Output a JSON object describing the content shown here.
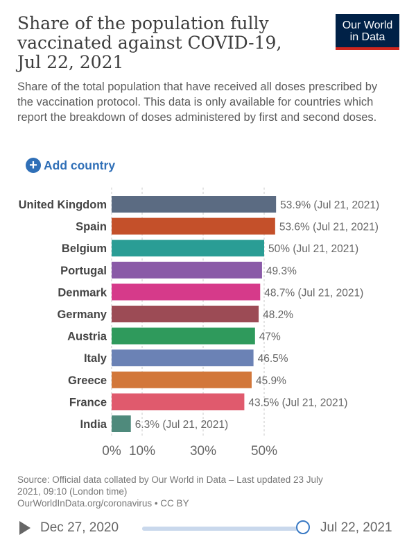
{
  "header": {
    "title": "Share of the population fully vaccinated against COVID-19, Jul 22, 2021",
    "subtitle": "Share of the total population that have received all doses prescribed by the vaccination protocol. This data is only available for countries which report the breakdown of doses administered by first and second doses.",
    "logo_line1": "Our World",
    "logo_line2": "in Data"
  },
  "controls": {
    "add_country_label": "Add country",
    "add_icon": "plus-circle-icon"
  },
  "chart_data": {
    "type": "bar",
    "orientation": "horizontal",
    "title": "Share of the population fully vaccinated against COVID-19, Jul 22, 2021",
    "categories": [
      "United Kingdom",
      "Spain",
      "Belgium",
      "Portugal",
      "Denmark",
      "Germany",
      "Austria",
      "Italy",
      "Greece",
      "France",
      "India"
    ],
    "values": [
      53.9,
      53.6,
      50,
      49.3,
      48.7,
      48.2,
      47,
      46.5,
      45.9,
      43.5,
      6.3
    ],
    "value_labels": [
      "53.9% (Jul 21, 2021)",
      "53.6% (Jul 21, 2021)",
      "50% (Jul 21, 2021)",
      "49.3%",
      "48.7% (Jul 21, 2021)",
      "48.2%",
      "47%",
      "46.5%",
      "45.9%",
      "43.5% (Jul 21, 2021)",
      "6.3% (Jul 21, 2021)"
    ],
    "colors": [
      "#5b6b82",
      "#c4502a",
      "#2a9d95",
      "#8a5aa7",
      "#d63a8a",
      "#9c4b55",
      "#2f9a5c",
      "#6b82b5",
      "#d2773a",
      "#e05a6d",
      "#4f8a7c"
    ],
    "xlim": [
      0,
      60
    ],
    "xticks": [
      0,
      10,
      30,
      50
    ],
    "xtick_labels": [
      "0%",
      "10%",
      "30%",
      "50%"
    ],
    "grid": true
  },
  "footer": {
    "source_line1": "Source: Official data collated by Our World in Data – Last updated 23 July",
    "source_line2": "2021, 09:10 (London time)",
    "source_line3": "OurWorldInData.org/coronavirus • CC BY"
  },
  "timeline": {
    "start_date": "Dec 27, 2020",
    "end_date": "Jul 22, 2021",
    "play_icon": "play-icon"
  }
}
